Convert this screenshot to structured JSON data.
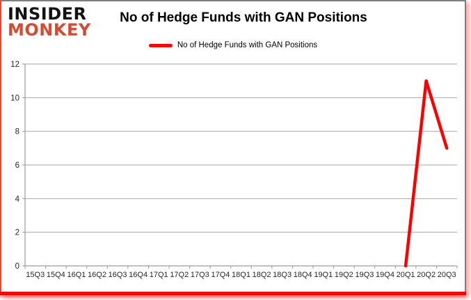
{
  "brand": {
    "line1": "INSIDER",
    "line2": "MONKEY"
  },
  "title": "No of Hedge Funds with GAN Positions",
  "legend": {
    "label": "No of Hedge Funds with GAN Positions"
  },
  "colors": {
    "line": "#ff0000",
    "grid": "#a6a6a6",
    "axis": "#9a9a9a",
    "axis_text": "#262626",
    "logo_black": "#131313",
    "logo_red": "#d64a33",
    "border_gray": "#7f7f7f",
    "border_red": "#f50400"
  },
  "chart_data": {
    "type": "line",
    "title": "No of Hedge Funds with GAN Positions",
    "categories": [
      "15Q3",
      "15Q4",
      "16Q1",
      "16Q2",
      "16Q3",
      "16Q4",
      "17Q1",
      "17Q2",
      "17Q3",
      "17Q4",
      "18Q1",
      "18Q2",
      "18Q3",
      "18Q4",
      "19Q1",
      "19Q2",
      "19Q3",
      "19Q4",
      "20Q1",
      "20Q2",
      "20Q3"
    ],
    "series": [
      {
        "name": "No of Hedge Funds with GAN Positions",
        "color": "#ff0000",
        "values": [
          null,
          null,
          null,
          null,
          null,
          null,
          null,
          null,
          null,
          null,
          null,
          null,
          null,
          null,
          null,
          null,
          null,
          null,
          0,
          11,
          7
        ]
      }
    ],
    "xlabel": "",
    "ylabel": "",
    "ylim": [
      0,
      12
    ],
    "yticks": [
      0,
      2,
      4,
      6,
      8,
      10,
      12
    ],
    "grid": true,
    "legend_position": "top"
  }
}
